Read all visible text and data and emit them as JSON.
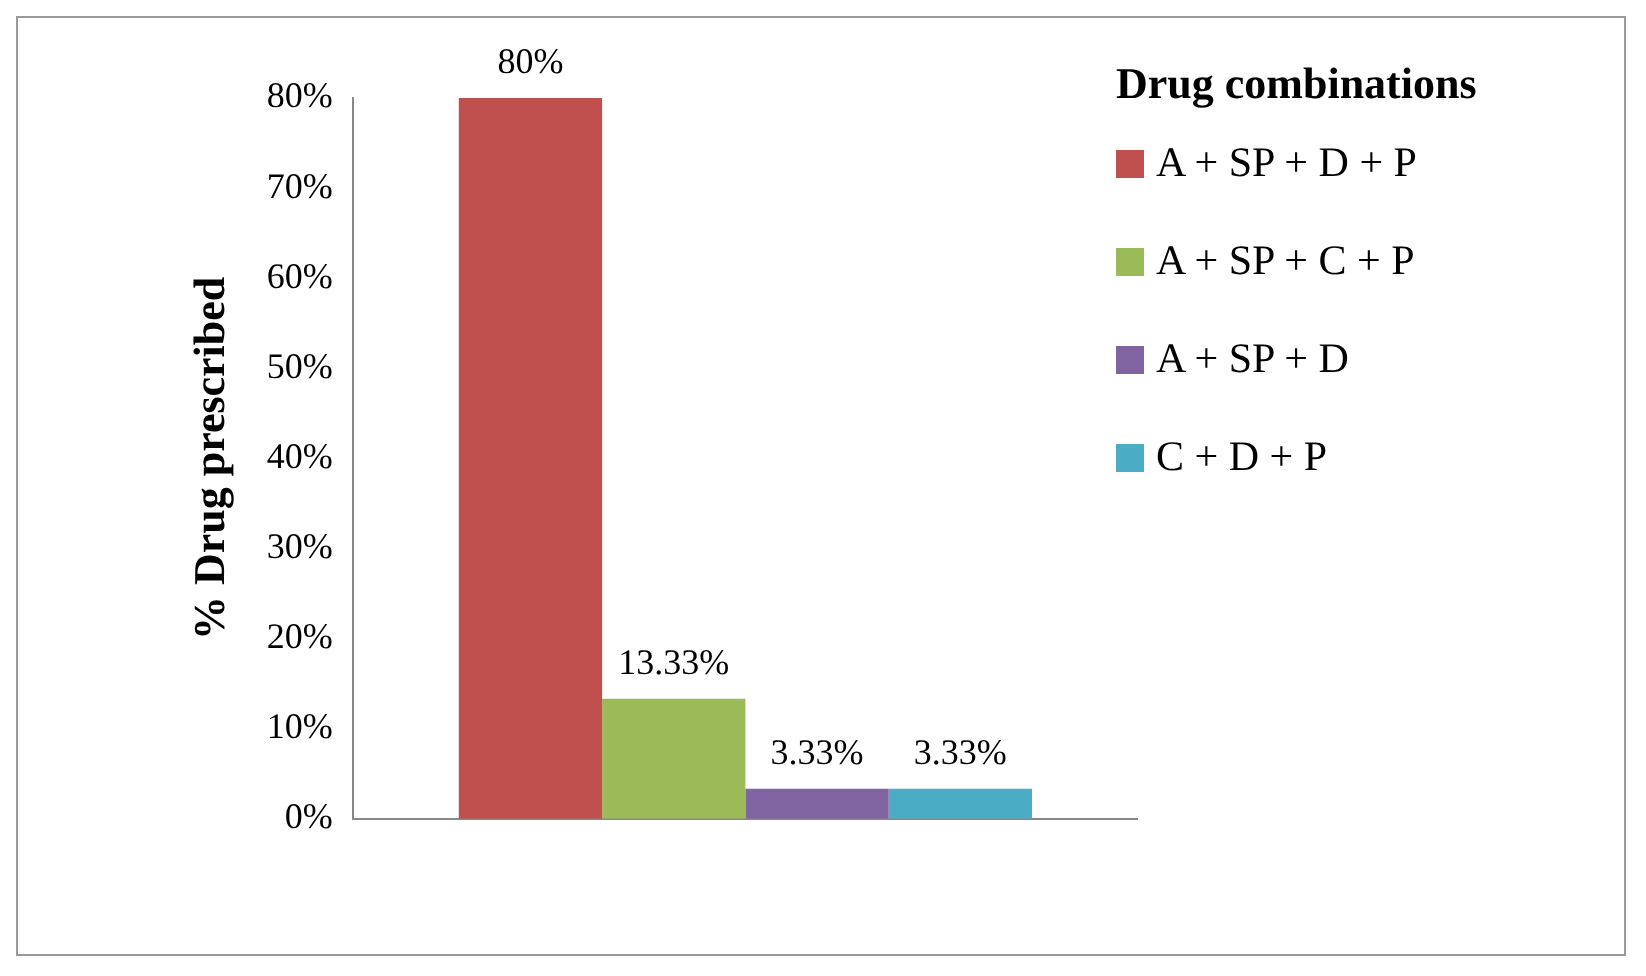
{
  "chart_data": {
    "type": "bar",
    "ylabel": "% Drug prescribed",
    "legend_title": "Drug combinations",
    "categories": [
      null
    ],
    "series": [
      {
        "name": "A + SP + D + P",
        "color": "#c0504d",
        "values": [
          80
        ],
        "value_labels": [
          "80%"
        ]
      },
      {
        "name": "A + SP + C + P",
        "color": "#9bbb59",
        "values": [
          13.33
        ],
        "value_labels": [
          "13.33%"
        ]
      },
      {
        "name": "A + SP + D",
        "color": "#8064a2",
        "values": [
          3.33
        ],
        "value_labels": [
          "3.33%"
        ]
      },
      {
        "name": "C + D + P",
        "color": "#4bacc6",
        "values": [
          3.33
        ],
        "value_labels": [
          "3.33%"
        ]
      }
    ],
    "ylim": [
      0,
      80
    ],
    "yticks": [
      {
        "value": 0,
        "label": "0%"
      },
      {
        "value": 10,
        "label": "10%"
      },
      {
        "value": 20,
        "label": "20%"
      },
      {
        "value": 30,
        "label": "30%"
      },
      {
        "value": 40,
        "label": "40%"
      },
      {
        "value": 50,
        "label": "50%"
      },
      {
        "value": 60,
        "label": "60%"
      },
      {
        "value": 70,
        "label": "70%"
      },
      {
        "value": 80,
        "label": "80%"
      }
    ],
    "grid": false,
    "legend": "right"
  }
}
